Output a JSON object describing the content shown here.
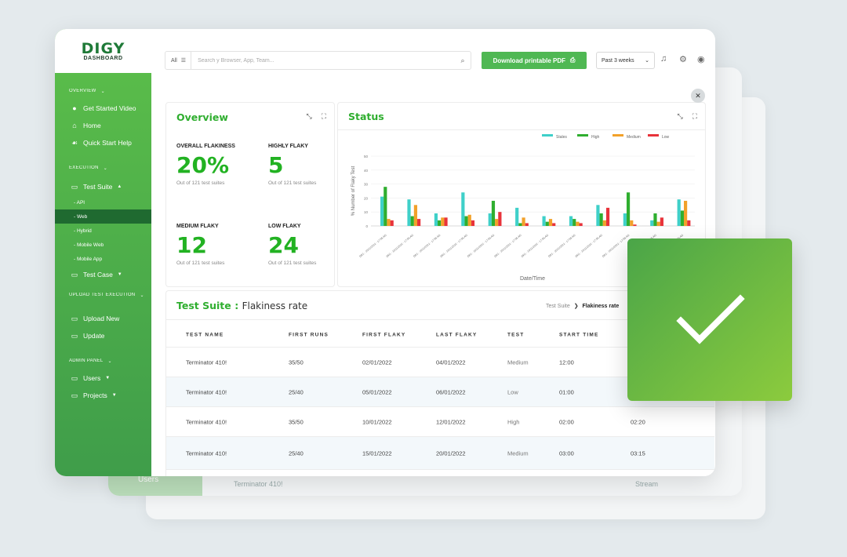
{
  "sidebar": {
    "logo_top": "DIGY",
    "logo_bottom": "DASHBOARD",
    "sections": [
      {
        "label": "OVERVIEW"
      },
      {
        "label": "EXECUTION"
      },
      {
        "label": "UPLOAD TEST EXECUTION"
      },
      {
        "label": "ADMIN PANEL"
      }
    ],
    "items": {
      "get_started": "Get Started Video",
      "home": "Home",
      "quick_start": "Quick Start Help",
      "test_suite": "Test Suite",
      "sub_api": "- API",
      "sub_web": "- Web",
      "sub_hybrid": "- Hybrid",
      "sub_mobile_web": "- Mobile Web",
      "sub_mobile_app": "- Mobile App",
      "test_case": "Test Case",
      "upload_new": "Upload New",
      "update": "Update",
      "users": "Users",
      "projects": "Projects"
    }
  },
  "topbar": {
    "filter": "All",
    "search_placeholder": "Search y Browser, App, Team...",
    "pdf_label": "Download printable PDF",
    "range": "Past 3 weeks"
  },
  "overview": {
    "title": "Overview",
    "metrics": [
      {
        "label": "OVERALL FLAKINESS",
        "value": "20%",
        "sub": "Out of 121 test suites"
      },
      {
        "label": "HIGHLY FLAKY",
        "value": "5",
        "sub": "Out of 121 test suites"
      },
      {
        "label": "MEDIUM FLAKY",
        "value": "12",
        "sub": "Out of 121 test suites"
      },
      {
        "label": "LOW FLAKY",
        "value": "24",
        "sub": "Out of 121 test suites"
      }
    ]
  },
  "status": {
    "title": "Status"
  },
  "chart_data": {
    "type": "bar",
    "title": "Status",
    "xlabel": "Date/Time",
    "ylabel": "% Number of Flaky Test",
    "ylim": [
      0,
      50
    ],
    "yticks": [
      0,
      10,
      20,
      30,
      40,
      50
    ],
    "legend_position": "top-right",
    "grid": true,
    "categories": [
      "DR1 - 10/11/2022 - 17:55:AG",
      "DR1 - 10/11/2022 - 17:55:AG",
      "DR1 - 10/11/2022 - 17:55:AG",
      "DR1 - 10/11/2022 - 17:55:AG",
      "DR1 - 10/11/2022 - 17:55:AG",
      "DR1 - 10/11/2022 - 17:55:AG",
      "DR1 - 10/11/2022 - 17:55:AG",
      "DR1 - 10/11/2022 - 17:55:AG",
      "DR1 - 10/11/2022 - 17:55:AG",
      "DR1 - 10/11/2022 - 17:55:AG",
      "DR1 - 10/11/2022 - 17:55:AG",
      "DR1 - 10/11/2022 - 17:55:AG"
    ],
    "series": [
      {
        "name": "Stales",
        "color": "#3fd0c9",
        "values": [
          21,
          19,
          9,
          24,
          9,
          13,
          7,
          7,
          15,
          9,
          4,
          19
        ]
      },
      {
        "name": "High",
        "color": "#2fae2f",
        "values": [
          28,
          7,
          4,
          7,
          18,
          2,
          3,
          5,
          9,
          24,
          9,
          11
        ]
      },
      {
        "name": "Medium",
        "color": "#f2a12a",
        "values": [
          5,
          15,
          6,
          8,
          5,
          6,
          5,
          3,
          4,
          4,
          3,
          18
        ]
      },
      {
        "name": "Low",
        "color": "#e8333a",
        "values": [
          4,
          5,
          6,
          4,
          10,
          2,
          2,
          2,
          13,
          1,
          6,
          4
        ]
      }
    ]
  },
  "table": {
    "title": "Test Suite",
    "subtitle": "Flakiness rate",
    "crumb_parent": "Test Suite",
    "crumb_sep": "❯",
    "crumb_current": "Flakiness rate",
    "headers": [
      "TEST NAME",
      "FIRST RUNS",
      "FIRST FLAKY",
      "LAST FLAKY",
      "TEST",
      "START TIME"
    ],
    "rows": [
      {
        "name": "Terminator 410!",
        "runs": "35/50",
        "first": "02/01/2022",
        "last": "04/01/2022",
        "test": "Medium",
        "start": "12:00",
        "end": ""
      },
      {
        "name": "Terminator 410!",
        "runs": "25/40",
        "first": "05/01/2022",
        "last": "06/01/2022",
        "test": "Low",
        "start": "01:00",
        "end": ""
      },
      {
        "name": "Terminator 410!",
        "runs": "35/50",
        "first": "10/01/2022",
        "last": "12/01/2022",
        "test": "High",
        "start": "02:00",
        "end": "02:20"
      },
      {
        "name": "Terminator 410!",
        "runs": "25/40",
        "first": "15/01/2022",
        "last": "20/01/2022",
        "test": "Medium",
        "start": "03:00",
        "end": "03:15"
      }
    ]
  },
  "ghost": {
    "name": "Terminator 410!",
    "status": "Stream",
    "users": "Users"
  },
  "icons": {
    "search": "search-icon",
    "printer": "printer-icon",
    "bell": "bell-icon",
    "gear": "gear-icon",
    "user": "user-icon",
    "check": "check-icon"
  }
}
